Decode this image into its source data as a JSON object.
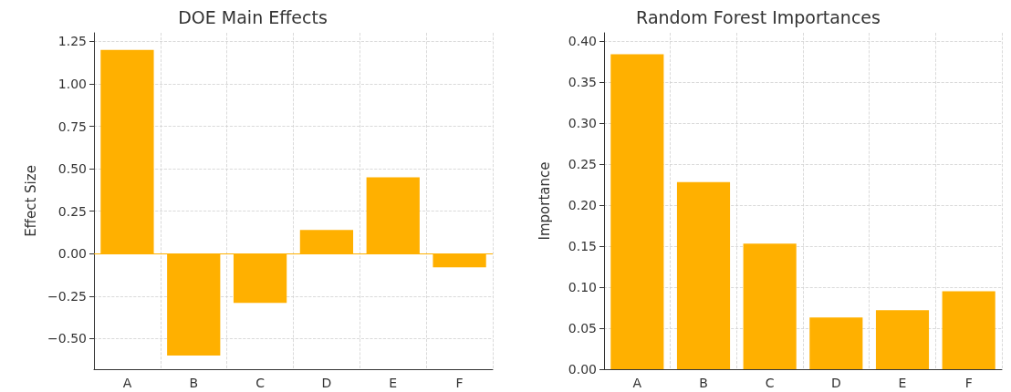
{
  "chart_data": [
    {
      "type": "bar",
      "title": "DOE Main Effects",
      "ylabel": "Effect Size",
      "categories": [
        "A",
        "B",
        "C",
        "D",
        "E",
        "F"
      ],
      "values": [
        1.2,
        -0.6,
        -0.29,
        0.14,
        0.45,
        -0.08
      ],
      "color": "#ffb000",
      "ylim": [
        -0.68,
        1.3
      ],
      "yticks": [
        {
          "value": -0.5,
          "label": "−0.50"
        },
        {
          "value": -0.25,
          "label": "−0.25"
        },
        {
          "value": 0,
          "label": "0.00"
        },
        {
          "value": 0.25,
          "label": "0.25"
        },
        {
          "value": 0.5,
          "label": "0.50"
        },
        {
          "value": 0.75,
          "label": "0.75"
        },
        {
          "value": 1,
          "label": "1.00"
        },
        {
          "value": 1.25,
          "label": "1.25"
        }
      ],
      "grid": true,
      "ref_lines": [
        {
          "axis": "y",
          "value": 0,
          "color": "#ffb000"
        }
      ]
    },
    {
      "type": "bar",
      "title": "Random Forest Importances",
      "ylabel": "Importance",
      "categories": [
        "A",
        "B",
        "C",
        "D",
        "E",
        "F"
      ],
      "values": [
        0.384,
        0.228,
        0.153,
        0.063,
        0.072,
        0.095
      ],
      "color": "#ffb000",
      "ylim": [
        0,
        0.41
      ],
      "yticks": [
        {
          "value": 0,
          "label": "0.00"
        },
        {
          "value": 0.05,
          "label": "0.05"
        },
        {
          "value": 0.1,
          "label": "0.10"
        },
        {
          "value": 0.15,
          "label": "0.15"
        },
        {
          "value": 0.2,
          "label": "0.20"
        },
        {
          "value": 0.25,
          "label": "0.25"
        },
        {
          "value": 0.3,
          "label": "0.30"
        },
        {
          "value": 0.35,
          "label": "0.35"
        },
        {
          "value": 0.4,
          "label": "0.40"
        }
      ],
      "grid": true
    }
  ]
}
